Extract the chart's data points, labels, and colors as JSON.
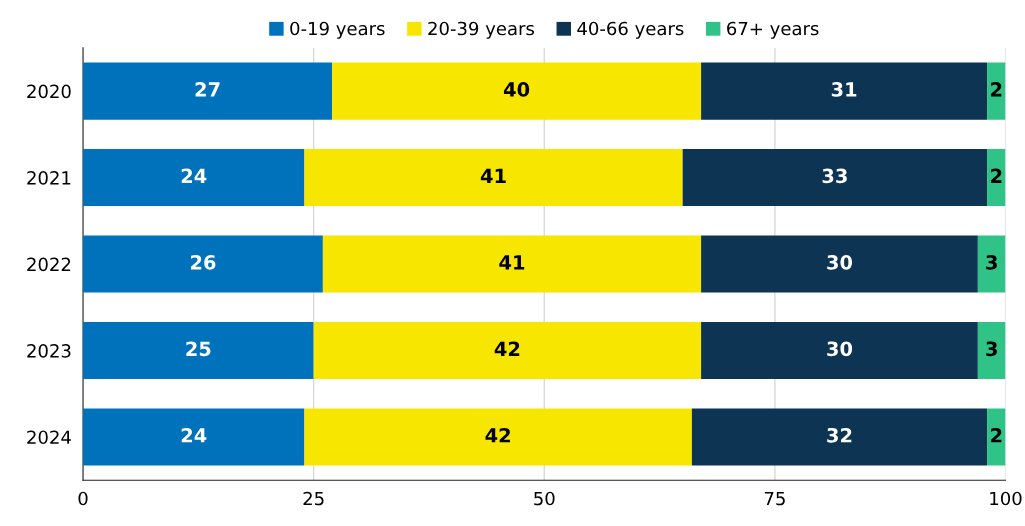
{
  "chart_data": {
    "type": "bar",
    "orientation": "horizontal",
    "stacked": true,
    "categories": [
      "2020",
      "2021",
      "2022",
      "2023",
      "2024"
    ],
    "series": [
      {
        "name": "0-19 years",
        "color": "#0072bc",
        "values": [
          27,
          24,
          26,
          25,
          24
        ]
      },
      {
        "name": "20-39 years",
        "color": "#f7e600",
        "values": [
          40,
          41,
          41,
          42,
          42
        ]
      },
      {
        "name": "40-66 years",
        "color": "#0d3553",
        "values": [
          31,
          33,
          30,
          30,
          32
        ]
      },
      {
        "name": "67+ years",
        "color": "#2fc387",
        "values": [
          2,
          2,
          3,
          3,
          2
        ]
      }
    ],
    "xlim": [
      0,
      100
    ],
    "xticks": [
      0,
      25,
      50,
      75,
      100
    ],
    "grid": "x",
    "legend": "top",
    "data_labels": true
  }
}
